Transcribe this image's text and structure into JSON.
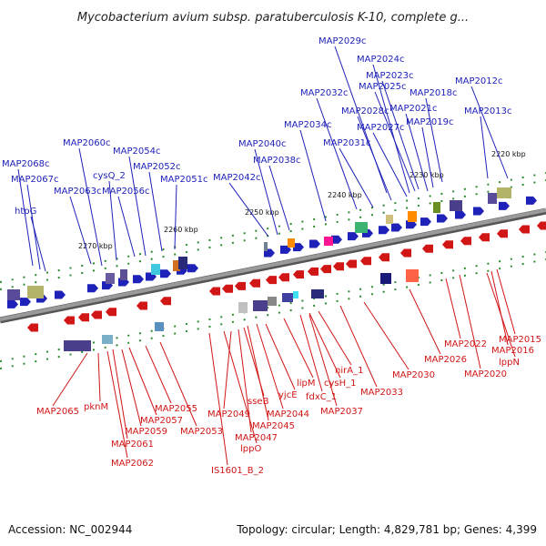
{
  "title": "Mycobacterium avium subsp. paratuberculosis K-10, complete g...",
  "footer": {
    "accession": "Accession: NC_002944",
    "summary": "Topology: circular; Length: 4,829,781 bp; Genes: 4,399"
  },
  "scale_ticks": [
    "2270 kbp",
    "2260 kbp",
    "2250 kbp",
    "2240 kbp",
    "2230 kbp",
    "2220 kbp"
  ],
  "plus_genes": [
    "MAP2068c",
    "MAP2067c",
    "htpG",
    "MAP2063c",
    "MAP2060c",
    "cysQ_2",
    "MAP2056c",
    "MAP2054c",
    "MAP2052c",
    "MAP2051c",
    "MAP2042c",
    "MAP2040c",
    "MAP2038c",
    "MAP2034c",
    "MAP2032c",
    "MAP2031c",
    "MAP2029c",
    "MAP2028c",
    "MAP2027c",
    "MAP2024c",
    "MAP2025c",
    "MAP2023c",
    "MAP2021c",
    "MAP2019c",
    "MAP2018c",
    "MAP2013c",
    "MAP2012c"
  ],
  "minus_genes": [
    "MAP2065",
    "pknM",
    "MAP2062",
    "MAP2061",
    "MAP2059",
    "MAP2057",
    "MAP2055",
    "MAP2053",
    "IS1601_B_2",
    "lppO",
    "MAP2049",
    "MAP2047",
    "sseB",
    "MAP2045",
    "MAP2044",
    "yjcE",
    "lipM",
    "fdxC_1",
    "cysH_1",
    "nirA_1",
    "MAP2037",
    "MAP2033",
    "MAP2030",
    "MAP2026",
    "MAP2022",
    "MAP2020",
    "lppN",
    "MAP2016",
    "MAP2015"
  ],
  "colors": {
    "plus": "#1f22b8",
    "minus": "#d11616",
    "backbone": "#8a8a8a",
    "tick": "#2e8b2e"
  }
}
